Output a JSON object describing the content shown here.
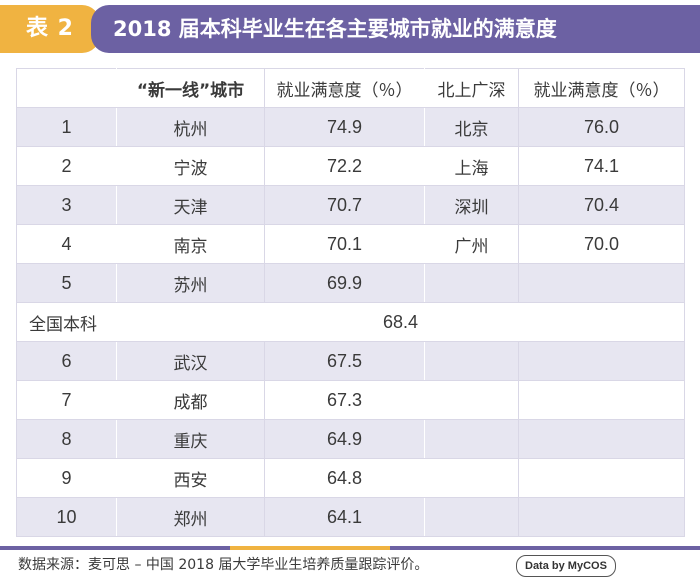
{
  "header": {
    "tag": "表 2",
    "title": "2018 届本科毕业生在各主要城市就业的满意度"
  },
  "table": {
    "columns": [
      "",
      "“新一线”城市",
      "就业满意度（％）",
      "北上广深",
      "就业满意度（％）"
    ],
    "rows": [
      [
        "1",
        "杭州",
        "74.9",
        "北京",
        "76.0"
      ],
      [
        "2",
        "宁波",
        "72.2",
        "上海",
        "74.1"
      ],
      [
        "3",
        "天津",
        "70.7",
        "深圳",
        "70.4"
      ],
      [
        "4",
        "南京",
        "70.1",
        "广州",
        "70.0"
      ],
      [
        "5",
        "苏州",
        "69.9",
        "",
        ""
      ]
    ],
    "national": {
      "label": "全国本科",
      "value": "68.4"
    },
    "rows_after": [
      [
        "6",
        "武汉",
        "67.5",
        "",
        ""
      ],
      [
        "7",
        "成都",
        "67.3",
        "",
        ""
      ],
      [
        "8",
        "重庆",
        "64.9",
        "",
        ""
      ],
      [
        "9",
        "西安",
        "64.8",
        "",
        ""
      ],
      [
        "10",
        "郑州",
        "64.1",
        "",
        ""
      ]
    ]
  },
  "footer": {
    "source": "数据来源：麦可思 – 中国 2018 届大学毕业生培养质量跟踪评价。",
    "brand": "Data by MyCOS"
  },
  "colors": {
    "accent_purple": "#6c61a3",
    "accent_orange": "#f0b341",
    "row_stripe": "#e7e6f1"
  }
}
